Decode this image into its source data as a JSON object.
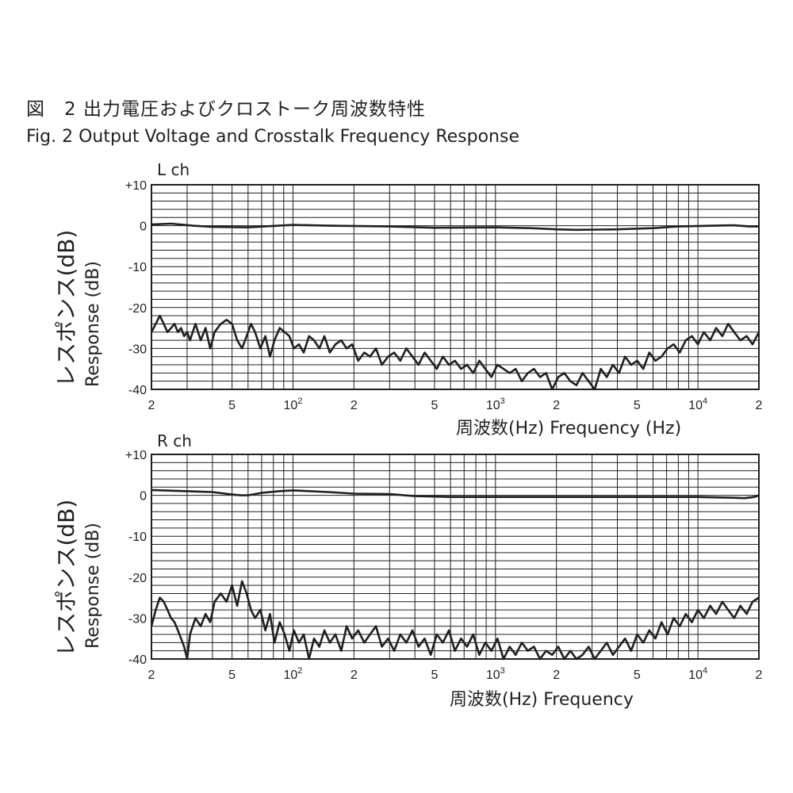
{
  "figure": {
    "title": "図　2 出力電圧およびクロストーク周波数特性",
    "subtitle": "Fig. 2  Output Voltage and Crosstalk Frequency Response"
  },
  "colors": {
    "grid": "#231f20",
    "line": "#231f20",
    "background": "#ffffff"
  },
  "chart_data": [
    {
      "type": "line",
      "title": "L ch",
      "ylabel": [
        "レスポンス(dB)",
        "Response (dB)"
      ],
      "xlabel": "周波数(Hz) Frequency (Hz)",
      "xscale": "log",
      "xlim": [
        20,
        20000
      ],
      "ylim": [
        -40,
        10
      ],
      "grid": true,
      "yticks": [
        "+10",
        "0",
        "-10",
        "-20",
        "-30",
        "-40"
      ],
      "xticks": [
        {
          "value": 20,
          "label": "2"
        },
        {
          "value": 50,
          "label": "5"
        },
        {
          "value": 100,
          "label": "10",
          "sup": "2"
        },
        {
          "value": 200,
          "label": "2"
        },
        {
          "value": 500,
          "label": "5"
        },
        {
          "value": 1000,
          "label": "10",
          "sup": "3"
        },
        {
          "value": 2000,
          "label": "2"
        },
        {
          "value": 5000,
          "label": "5"
        },
        {
          "value": 10000,
          "label": "10",
          "sup": "4"
        },
        {
          "value": 20000,
          "label": "2"
        }
      ],
      "series": [
        {
          "x": [
            20,
            25,
            32,
            40,
            60,
            100,
            150,
            300,
            500,
            1000,
            1500,
            2000,
            2500,
            4000,
            6000,
            8000,
            12000,
            15000,
            18000,
            20000
          ],
          "y": [
            0.3,
            0.5,
            0.0,
            -0.3,
            -0.4,
            0.2,
            0.0,
            -0.2,
            -0.5,
            -0.4,
            -0.6,
            -0.9,
            -1.0,
            -0.9,
            -0.6,
            -0.2,
            0.0,
            0.1,
            -0.2,
            -0.2
          ]
        },
        {
          "x": [
            20,
            21,
            22,
            23,
            24,
            25,
            26,
            27,
            28,
            29,
            30,
            31,
            33,
            35,
            37,
            39,
            41,
            44,
            47,
            50,
            53,
            56,
            59,
            62,
            65,
            69,
            73,
            77,
            81,
            86,
            91,
            96,
            101,
            107,
            113,
            120,
            127,
            135,
            143,
            152,
            162,
            173,
            184,
            196,
            210,
            225,
            240,
            257,
            275,
            295,
            316,
            339,
            363,
            389,
            417,
            447,
            479,
            513,
            550,
            589,
            631,
            676,
            724,
            776,
            832,
            891,
            955,
            1023,
            1096,
            1175,
            1259,
            1349,
            1445,
            1549,
            1660,
            1778,
            1905,
            2042,
            2188,
            2344,
            2512,
            2692,
            2884,
            3090,
            3311,
            3548,
            3802,
            4074,
            4365,
            4677,
            5012,
            5370,
            5754,
            6166,
            6607,
            7079,
            7586,
            8128,
            8710,
            9333,
            10000,
            10700,
            11500,
            12300,
            13200,
            14100,
            15100,
            16200,
            17400,
            18600,
            20000
          ],
          "y": [
            -26,
            -24,
            -22,
            -24,
            -26,
            -25,
            -24,
            -26,
            -25,
            -27,
            -26,
            -28,
            -24,
            -28,
            -25,
            -30,
            -26,
            -24,
            -23,
            -24,
            -28,
            -30,
            -27,
            -24,
            -26,
            -30,
            -27,
            -32,
            -28,
            -25,
            -26,
            -27,
            -30,
            -29,
            -31,
            -27,
            -28,
            -30,
            -27,
            -31,
            -29,
            -28,
            -30,
            -29,
            -33,
            -31,
            -32,
            -30,
            -34,
            -32,
            -31,
            -33,
            -30,
            -32,
            -34,
            -31,
            -33,
            -35,
            -32,
            -34,
            -33,
            -35,
            -34,
            -36,
            -33,
            -35,
            -37,
            -34,
            -35,
            -36,
            -35,
            -38,
            -36,
            -35,
            -37,
            -36,
            -40,
            -37,
            -36,
            -38,
            -39,
            -36,
            -38,
            -40,
            -35,
            -37,
            -34,
            -36,
            -32,
            -34,
            -33,
            -35,
            -31,
            -33,
            -32,
            -30,
            -29,
            -31,
            -28,
            -27,
            -29,
            -26,
            -28,
            -25,
            -27,
            -24,
            -26,
            -28,
            -27,
            -29,
            -26
          ]
        }
      ]
    },
    {
      "type": "line",
      "title": "R ch",
      "ylabel": [
        "レスポンス(dB)",
        "Response (dB)"
      ],
      "xlabel": "周波数(Hz) Frequency",
      "xscale": "log",
      "xlim": [
        20,
        20000
      ],
      "ylim": [
        -40,
        10
      ],
      "grid": true,
      "yticks": [
        "+10",
        "0",
        "-10",
        "-20",
        "-30",
        "-40"
      ],
      "xticks": [
        {
          "value": 20,
          "label": "2"
        },
        {
          "value": 50,
          "label": "5"
        },
        {
          "value": 100,
          "label": "10",
          "sup": "2"
        },
        {
          "value": 200,
          "label": "2"
        },
        {
          "value": 500,
          "label": "5"
        },
        {
          "value": 1000,
          "label": "10",
          "sup": "3"
        },
        {
          "value": 2000,
          "label": "2"
        },
        {
          "value": 5000,
          "label": "5"
        },
        {
          "value": 10000,
          "label": "10",
          "sup": "4"
        },
        {
          "value": 20000,
          "label": "2"
        }
      ],
      "series": [
        {
          "x": [
            20,
            30,
            40,
            50,
            55,
            60,
            70,
            85,
            100,
            150,
            200,
            300,
            400,
            600,
            1000,
            2000,
            5000,
            10000,
            15000,
            17000,
            19000,
            20000
          ],
          "y": [
            1.3,
            1.0,
            0.8,
            0.2,
            0.0,
            0.0,
            0.6,
            1.0,
            1.2,
            0.8,
            0.4,
            0.3,
            -0.2,
            -0.4,
            -0.4,
            -0.4,
            -0.4,
            -0.4,
            -0.6,
            -0.7,
            -0.4,
            0.0
          ]
        },
        {
          "x": [
            20,
            21,
            22,
            23,
            24,
            25,
            26,
            27,
            28,
            29,
            30,
            31,
            33,
            35,
            37,
            39,
            41,
            44,
            47,
            50,
            53,
            56,
            59,
            62,
            65,
            69,
            73,
            77,
            81,
            86,
            91,
            96,
            101,
            107,
            113,
            120,
            127,
            135,
            143,
            152,
            162,
            173,
            184,
            196,
            210,
            225,
            240,
            257,
            275,
            295,
            316,
            339,
            363,
            389,
            417,
            447,
            479,
            513,
            550,
            589,
            631,
            676,
            724,
            776,
            832,
            891,
            955,
            1023,
            1096,
            1175,
            1259,
            1349,
            1445,
            1549,
            1660,
            1778,
            1905,
            2042,
            2188,
            2344,
            2512,
            2692,
            2884,
            3090,
            3311,
            3548,
            3802,
            4074,
            4365,
            4677,
            5012,
            5370,
            5754,
            6166,
            6607,
            7079,
            7586,
            8128,
            8710,
            9333,
            10000,
            10700,
            11500,
            12300,
            13200,
            14100,
            15100,
            16200,
            17400,
            18600,
            20000
          ],
          "y": [
            -32,
            -28,
            -25,
            -26,
            -28,
            -30,
            -31,
            -33,
            -35,
            -37,
            -40,
            -34,
            -30,
            -32,
            -29,
            -31,
            -26,
            -24,
            -26,
            -22,
            -27,
            -21,
            -24,
            -28,
            -30,
            -28,
            -33,
            -29,
            -36,
            -31,
            -34,
            -38,
            -33,
            -36,
            -34,
            -40,
            -35,
            -37,
            -33,
            -36,
            -34,
            -38,
            -32,
            -35,
            -33,
            -36,
            -34,
            -32,
            -37,
            -35,
            -38,
            -34,
            -36,
            -33,
            -37,
            -35,
            -39,
            -34,
            -36,
            -33,
            -38,
            -35,
            -37,
            -34,
            -39,
            -36,
            -38,
            -35,
            -40,
            -37,
            -39,
            -36,
            -38,
            -37,
            -40,
            -38,
            -39,
            -37,
            -40,
            -38,
            -40,
            -39,
            -37,
            -40,
            -38,
            -36,
            -39,
            -37,
            -35,
            -38,
            -34,
            -36,
            -33,
            -35,
            -31,
            -34,
            -30,
            -32,
            -29,
            -31,
            -28,
            -30,
            -27,
            -29,
            -26,
            -28,
            -30,
            -27,
            -29,
            -26,
            -25
          ]
        }
      ]
    }
  ]
}
